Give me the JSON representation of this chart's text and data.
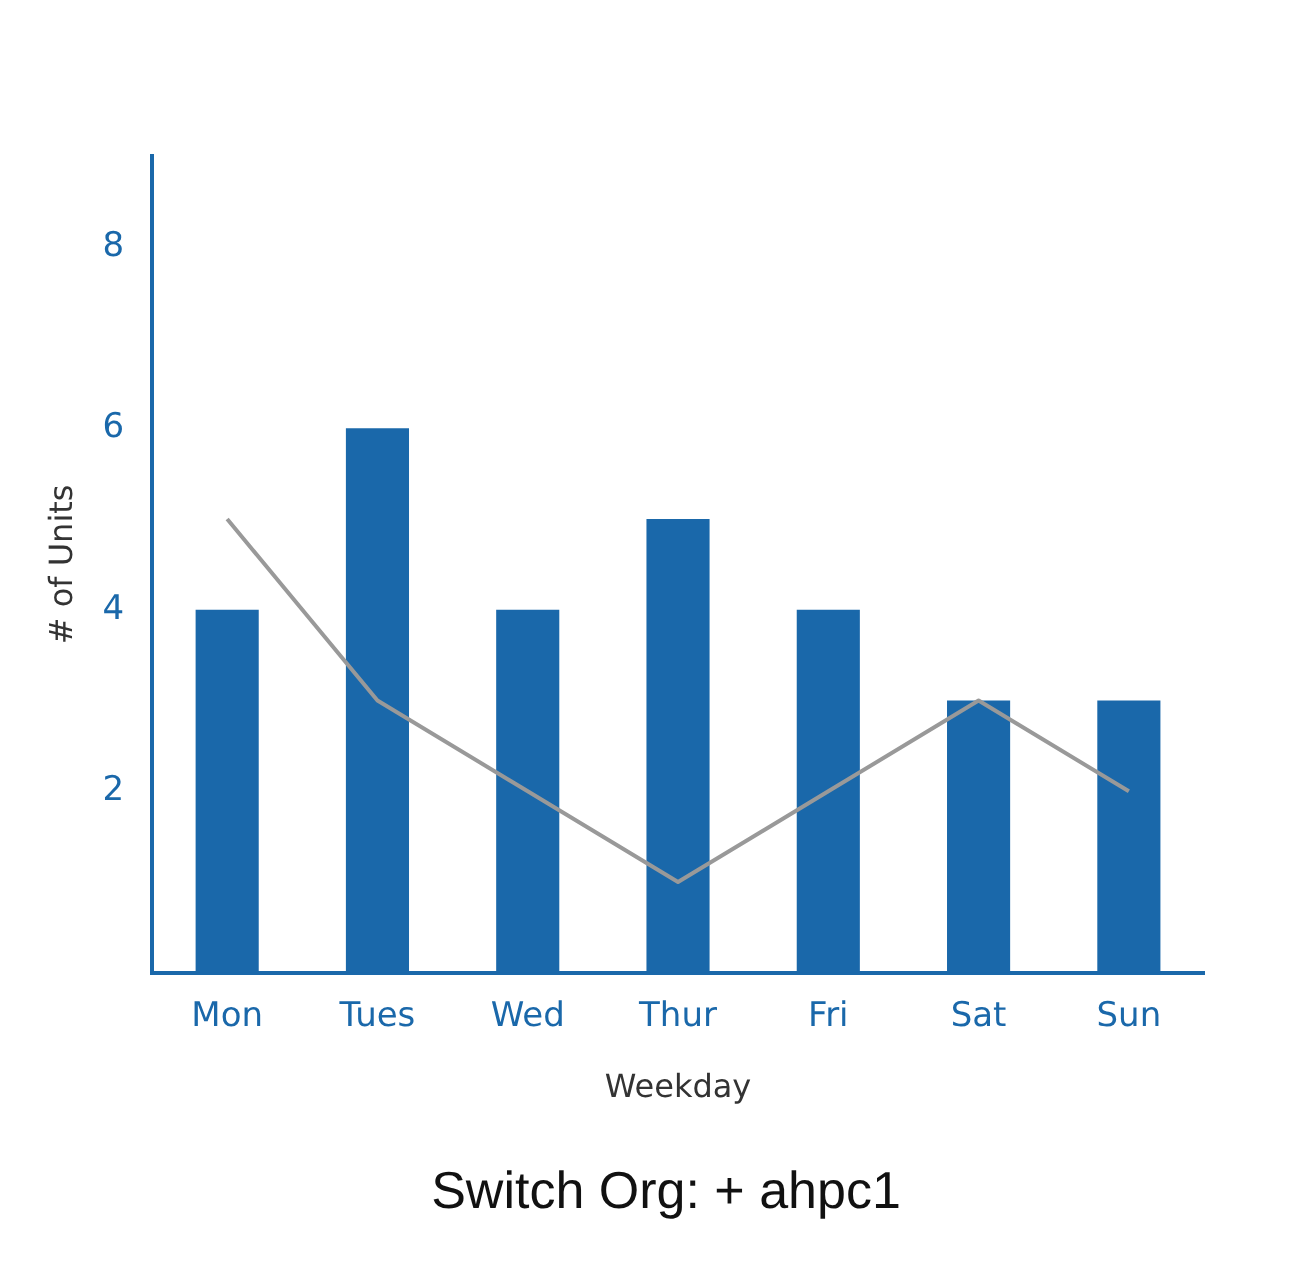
{
  "chart_data": {
    "type": "bar",
    "xlabel": "Weekday",
    "ylabel": "# of Units",
    "categories": [
      "Mon",
      "Tues",
      "Wed",
      "Thur",
      "Fri",
      "Sat",
      "Sun"
    ],
    "series": [
      {
        "color": "#1a68aa",
        "values": [
          4,
          6,
          4,
          5,
          4,
          3,
          3
        ]
      },
      {
        "type": "line",
        "color": "#999999",
        "values": [
          5,
          3,
          2,
          1,
          2,
          3,
          2
        ]
      }
    ],
    "ylim": [
      0,
      9
    ],
    "yticks": [
      2,
      4,
      6,
      8
    ],
    "grid": false,
    "legend": false,
    "marker": "none",
    "annotations": [
      "Switch Org: + ahpc1"
    ]
  }
}
